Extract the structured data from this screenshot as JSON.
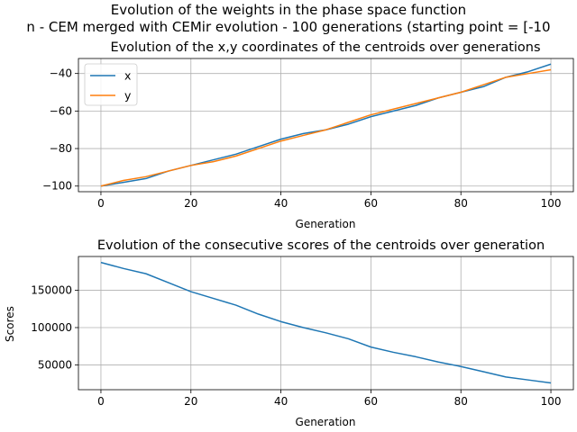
{
  "figure": {
    "suptitle_line1": "Evolution of the weights in the phase space  function",
    "suptitle_line2": "n - CEM merged with CEMir evolution - 100 generations (starting point = [-10"
  },
  "colors": {
    "x": "#1f77b4",
    "y": "#ff7f0e",
    "grid": "#b0b0b0",
    "score": "#1f77b4"
  },
  "chart_data": [
    {
      "type": "line",
      "title": "Evolution of the x,y coordinates of the centroids over generations",
      "xlabel": "Generation",
      "ylabel": "",
      "xlim": [
        -5,
        105
      ],
      "ylim": [
        -103,
        -32
      ],
      "xticks": [
        0,
        20,
        40,
        60,
        80,
        100
      ],
      "yticks": [
        -100,
        -80,
        -60,
        -40
      ],
      "grid": true,
      "legend": "top-left",
      "x": [
        0,
        5,
        10,
        15,
        20,
        25,
        30,
        35,
        40,
        45,
        50,
        55,
        60,
        65,
        70,
        75,
        80,
        85,
        90,
        95,
        100
      ],
      "series": [
        {
          "name": "x",
          "values": [
            -100,
            -98,
            -96,
            -92,
            -89,
            -86,
            -83,
            -79,
            -75,
            -72,
            -70,
            -67,
            -63,
            -60,
            -57,
            -53,
            -50,
            -47,
            -42,
            -39,
            -35
          ]
        },
        {
          "name": "y",
          "values": [
            -100,
            -97,
            -95,
            -92,
            -89,
            -87,
            -84,
            -80,
            -76,
            -73,
            -70,
            -66,
            -62,
            -59,
            -56,
            -53,
            -50,
            -46,
            -42,
            -40,
            -38
          ]
        }
      ]
    },
    {
      "type": "line",
      "title": "Evolution of the consecutive scores of the centroids over generation",
      "xlabel": "Generation",
      "ylabel": "Scores",
      "xlim": [
        -5,
        105
      ],
      "ylim": [
        17000,
        195000
      ],
      "xticks": [
        0,
        20,
        40,
        60,
        80,
        100
      ],
      "yticks": [
        50000,
        100000,
        150000
      ],
      "grid": true,
      "x": [
        0,
        5,
        10,
        15,
        20,
        25,
        30,
        35,
        40,
        45,
        50,
        55,
        60,
        65,
        70,
        75,
        80,
        85,
        90,
        95,
        100
      ],
      "series": [
        {
          "values": [
            187000,
            179000,
            172000,
            160000,
            148000,
            139000,
            130000,
            118000,
            108000,
            100000,
            93000,
            85000,
            74000,
            67000,
            61000,
            54000,
            48000,
            41000,
            34000,
            30000,
            26000
          ]
        }
      ]
    }
  ]
}
